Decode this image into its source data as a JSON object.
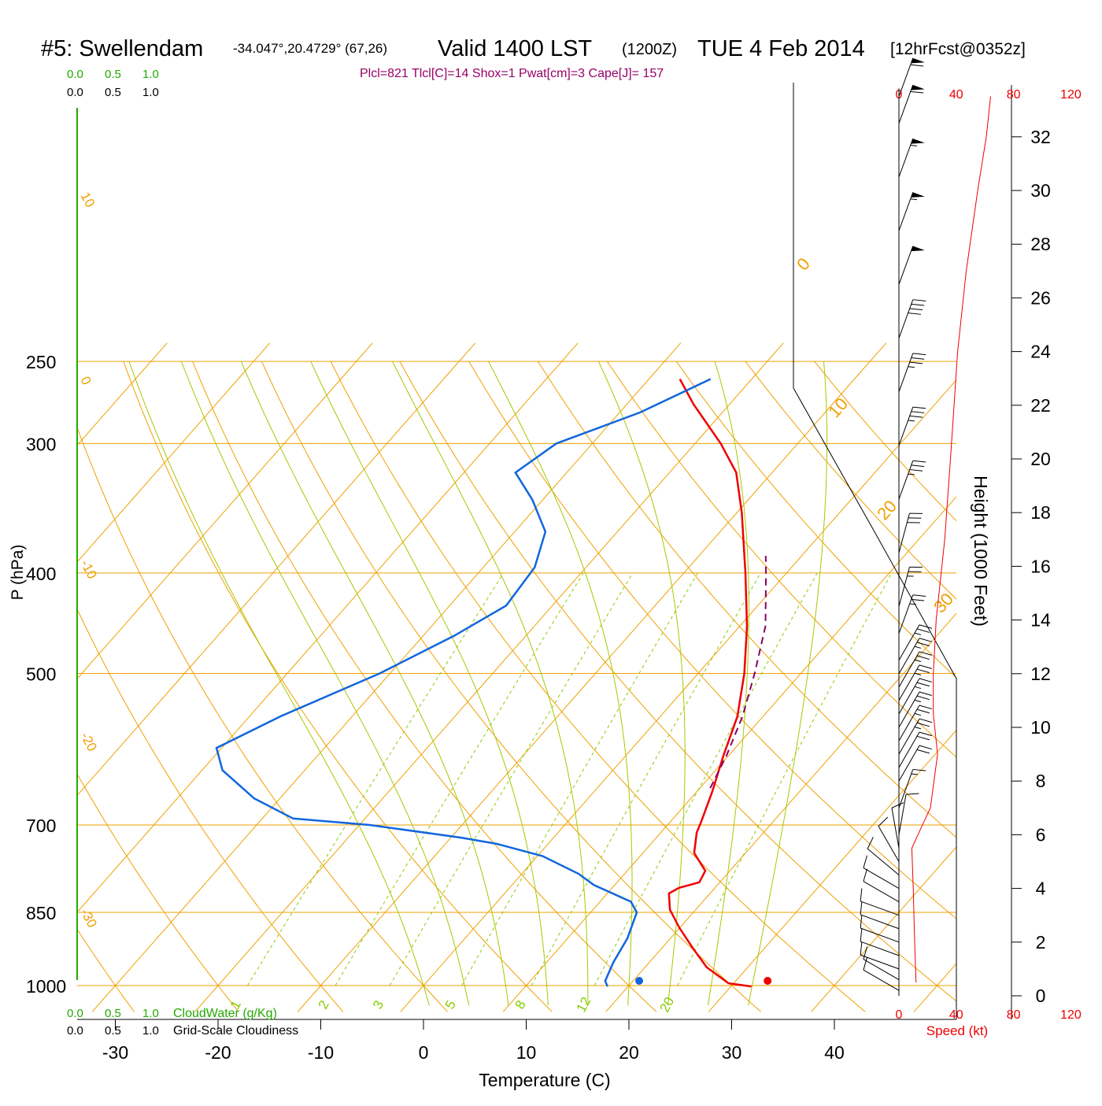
{
  "header": {
    "station": "#5: Swellendam",
    "coords": "-34.047°,20.4729° (67,26)",
    "valid": "Valid 1400 LST",
    "utc": "(1200Z)",
    "date": "TUE 4 Feb 2014",
    "forecast": "[12hrFcst@0352z]",
    "indices": "Plcl=821 Tlcl[C]=14 Shox=1 Pwat[cm]=3 Cape[J]= 157"
  },
  "colors": {
    "temperature": "#ee0000",
    "dewpoint": "#1166dd",
    "parcel": "#880066",
    "isotherm_grid": "#f0a000",
    "dry_adiabat": "#a8c800",
    "mixing_ratio": "#88cc00",
    "cloud_scale": "#22aa00",
    "index_text": "#990066",
    "speed": "#ee0000"
  },
  "axes": {
    "xlabel": "Temperature (C)",
    "ylabel": "P (hPa)",
    "height_label": "Height (1000 Feet)",
    "speed_label": "Speed (kt)",
    "xticks": [
      "-30",
      "-20",
      "-10",
      "0",
      "10",
      "20",
      "30",
      "40"
    ],
    "pressure_ticks": [
      "250",
      "300",
      "400",
      "500",
      "700",
      "850",
      "1000"
    ],
    "height_ticks": [
      "0",
      "2",
      "4",
      "6",
      "8",
      "10",
      "12",
      "14",
      "16",
      "18",
      "20",
      "22",
      "24",
      "26",
      "28",
      "30",
      "32"
    ],
    "speed_ticks": [
      "0",
      "40",
      "80",
      "120"
    ],
    "cloud_water_ticks": [
      "0.0",
      "0.5",
      "1.0"
    ],
    "cloud_water_label": "CloudWater (g/Kg)",
    "cloudiness_ticks": [
      "0.0",
      "0.5",
      "1.0"
    ],
    "cloudiness_label": "Grid-Scale Cloudiness"
  },
  "grid_labels": {
    "isotherms": [
      "30",
      "20",
      "10",
      "0",
      "-10",
      "-20",
      "-30"
    ],
    "mixing_ratios": [
      "1",
      "2",
      "3",
      "5",
      "8",
      "12",
      "20"
    ]
  },
  "chart_data": {
    "type": "line",
    "title": "#5: Swellendam",
    "xlabel": "Temperature (C)",
    "ylabel": "P (hPa)",
    "xlim": [
      -35,
      47
    ],
    "ylim": [
      1040,
      250
    ],
    "y_scale": "log (skew-T)",
    "grid": true,
    "series": [
      {
        "name": "temperature",
        "points": [
          {
            "p": 1002,
            "t": 32.0
          },
          {
            "p": 995,
            "t": 29.5
          },
          {
            "p": 960,
            "t": 26.0
          },
          {
            "p": 920,
            "t": 23.0
          },
          {
            "p": 880,
            "t": 20.0
          },
          {
            "p": 845,
            "t": 17.5
          },
          {
            "p": 815,
            "t": 16.0
          },
          {
            "p": 805,
            "t": 16.5
          },
          {
            "p": 795,
            "t": 18.0
          },
          {
            "p": 775,
            "t": 17.6
          },
          {
            "p": 745,
            "t": 15.0
          },
          {
            "p": 712,
            "t": 13.5
          },
          {
            "p": 695,
            "t": 13.0
          },
          {
            "p": 650,
            "t": 11.5
          },
          {
            "p": 600,
            "t": 9.5
          },
          {
            "p": 550,
            "t": 7.5
          },
          {
            "p": 500,
            "t": 4.5
          },
          {
            "p": 450,
            "t": 0.7
          },
          {
            "p": 400,
            "t": -4.0
          },
          {
            "p": 350,
            "t": -9.5
          },
          {
            "p": 320,
            "t": -13.5
          },
          {
            "p": 300,
            "t": -17.5
          },
          {
            "p": 275,
            "t": -23.5
          },
          {
            "p": 260,
            "t": -27.0
          }
        ]
      },
      {
        "name": "dewpoint",
        "points": [
          {
            "p": 1002,
            "t": 18.0
          },
          {
            "p": 990,
            "t": 17.3
          },
          {
            "p": 950,
            "t": 16.5
          },
          {
            "p": 900,
            "t": 15.8
          },
          {
            "p": 850,
            "t": 14.5
          },
          {
            "p": 830,
            "t": 13.0
          },
          {
            "p": 800,
            "t": 8.0
          },
          {
            "p": 780,
            "t": 5.5
          },
          {
            "p": 750,
            "t": 0.5
          },
          {
            "p": 730,
            "t": -5.0
          },
          {
            "p": 720,
            "t": -9.0
          },
          {
            "p": 700,
            "t": -19.0
          },
          {
            "p": 690,
            "t": -27.0
          },
          {
            "p": 660,
            "t": -32.5
          },
          {
            "p": 620,
            "t": -38.0
          },
          {
            "p": 590,
            "t": -40.5
          },
          {
            "p": 550,
            "t": -37.0
          },
          {
            "p": 500,
            "t": -31.0
          },
          {
            "p": 460,
            "t": -27.0
          },
          {
            "p": 430,
            "t": -24.5
          },
          {
            "p": 395,
            "t": -25.0
          },
          {
            "p": 365,
            "t": -27.0
          },
          {
            "p": 340,
            "t": -31.0
          },
          {
            "p": 320,
            "t": -35.0
          },
          {
            "p": 300,
            "t": -33.5
          },
          {
            "p": 280,
            "t": -28.0
          },
          {
            "p": 260,
            "t": -24.0
          }
        ]
      },
      {
        "name": "parcel",
        "points": [
          {
            "p": 645,
            "t": 11.0
          },
          {
            "p": 600,
            "t": 9.8
          },
          {
            "p": 550,
            "t": 8.0
          },
          {
            "p": 500,
            "t": 5.5
          },
          {
            "p": 450,
            "t": 2.5
          },
          {
            "p": 400,
            "t": -2.0
          },
          {
            "p": 385,
            "t": -3.5
          }
        ]
      }
    ],
    "surface_markers": {
      "temperature": 33.5,
      "dewpoint": 21.0,
      "p": 1000
    },
    "wind_speed_profile": [
      {
        "h": 0.5,
        "kt": 12
      },
      {
        "h": 2.0,
        "kt": 11
      },
      {
        "h": 4.0,
        "kt": 10
      },
      {
        "h": 5.5,
        "kt": 9
      },
      {
        "h": 6.2,
        "kt": 15
      },
      {
        "h": 7.0,
        "kt": 22
      },
      {
        "h": 9.0,
        "kt": 27
      },
      {
        "h": 10.5,
        "kt": 24
      },
      {
        "h": 12.0,
        "kt": 24
      },
      {
        "h": 14.0,
        "kt": 26
      },
      {
        "h": 17.0,
        "kt": 32
      },
      {
        "h": 20.0,
        "kt": 36
      },
      {
        "h": 24.0,
        "kt": 41
      },
      {
        "h": 27.0,
        "kt": 47
      },
      {
        "h": 30.0,
        "kt": 55
      },
      {
        "h": 32.0,
        "kt": 61
      },
      {
        "h": 33.5,
        "kt": 64
      }
    ],
    "wind_barbs": [
      {
        "h": 0.2,
        "dir": 300,
        "kt": 10
      },
      {
        "h": 0.6,
        "dir": 300,
        "kt": 10
      },
      {
        "h": 1.0,
        "dir": 290,
        "kt": 10
      },
      {
        "h": 1.5,
        "dir": 290,
        "kt": 10
      },
      {
        "h": 2.0,
        "dir": 290,
        "kt": 10
      },
      {
        "h": 2.5,
        "dir": 290,
        "kt": 10
      },
      {
        "h": 3.0,
        "dir": 290,
        "kt": 10
      },
      {
        "h": 3.5,
        "dir": 300,
        "kt": 10
      },
      {
        "h": 4.0,
        "dir": 300,
        "kt": 10
      },
      {
        "h": 4.5,
        "dir": 310,
        "kt": 10
      },
      {
        "h": 5.0,
        "dir": 330,
        "kt": 10
      },
      {
        "h": 5.5,
        "dir": 350,
        "kt": 10
      },
      {
        "h": 6.0,
        "dir": 10,
        "kt": 10
      },
      {
        "h": 7.0,
        "dir": 20,
        "kt": 15
      },
      {
        "h": 8.0,
        "dir": 30,
        "kt": 20
      },
      {
        "h": 8.5,
        "dir": 30,
        "kt": 20
      },
      {
        "h": 9.0,
        "dir": 30,
        "kt": 25
      },
      {
        "h": 9.5,
        "dir": 30,
        "kt": 25
      },
      {
        "h": 10.0,
        "dir": 30,
        "kt": 25
      },
      {
        "h": 10.5,
        "dir": 30,
        "kt": 25
      },
      {
        "h": 11.0,
        "dir": 30,
        "kt": 25
      },
      {
        "h": 11.5,
        "dir": 30,
        "kt": 25
      },
      {
        "h": 12.0,
        "dir": 30,
        "kt": 25
      },
      {
        "h": 12.5,
        "dir": 30,
        "kt": 25
      },
      {
        "h": 13.5,
        "dir": 20,
        "kt": 25
      },
      {
        "h": 14.5,
        "dir": 15,
        "kt": 25
      },
      {
        "h": 16.5,
        "dir": 15,
        "kt": 30
      },
      {
        "h": 18.5,
        "dir": 20,
        "kt": 35
      },
      {
        "h": 20.5,
        "dir": 20,
        "kt": 35
      },
      {
        "h": 22.5,
        "dir": 20,
        "kt": 35
      },
      {
        "h": 24.5,
        "dir": 20,
        "kt": 40
      },
      {
        "h": 26.5,
        "dir": 20,
        "kt": 50
      },
      {
        "h": 28.5,
        "dir": 20,
        "kt": 55
      },
      {
        "h": 30.5,
        "dir": 20,
        "kt": 55
      },
      {
        "h": 32.5,
        "dir": 20,
        "kt": 60
      },
      {
        "h": 33.5,
        "dir": 20,
        "kt": 60
      }
    ]
  }
}
